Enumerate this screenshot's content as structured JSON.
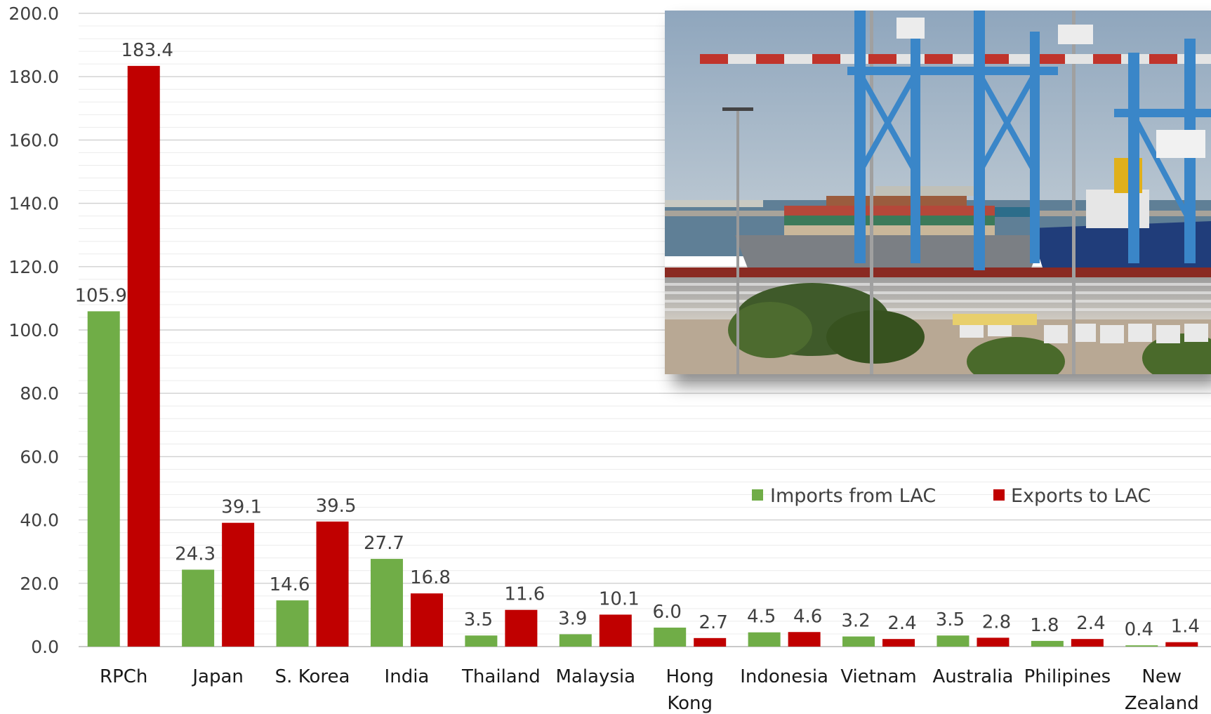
{
  "chart_data": {
    "type": "bar",
    "categories": [
      "RPCh",
      "Japan",
      "S. Korea",
      "India",
      "Thailand",
      "Malaysia",
      "Hong Kong",
      "Indonesia",
      "Vietnam",
      "Australia",
      "Philipines",
      "New Zealand"
    ],
    "category_lines": [
      [
        "RPCh"
      ],
      [
        "Japan"
      ],
      [
        "S. Korea"
      ],
      [
        "India"
      ],
      [
        "Thailand"
      ],
      [
        "Malaysia"
      ],
      [
        "Hong",
        "Kong"
      ],
      [
        "Indonesia"
      ],
      [
        "Vietnam"
      ],
      [
        "Australia"
      ],
      [
        "Philipines"
      ],
      [
        "New",
        "Zealand"
      ]
    ],
    "series": [
      {
        "name": "Imports from LAC",
        "color": "#70ad47",
        "values": [
          105.9,
          24.3,
          14.6,
          27.7,
          3.5,
          3.9,
          6.0,
          4.5,
          3.2,
          3.5,
          1.8,
          0.4
        ],
        "labels": [
          "105.9",
          "24.3",
          "14.6",
          "27.7",
          "3.5",
          "3.9",
          "6.0",
          "4.5",
          "3.2",
          "3.5",
          "1.8",
          "0.4"
        ]
      },
      {
        "name": "Exports to LAC",
        "color": "#c00000",
        "values": [
          183.4,
          39.1,
          39.5,
          16.8,
          11.6,
          10.1,
          2.7,
          4.6,
          2.4,
          2.8,
          2.4,
          1.4
        ],
        "labels": [
          "183.4",
          "39.1",
          "39.5",
          "16.8",
          "11.6",
          "10.1",
          "2.7",
          "4.6",
          "2.4",
          "2.8",
          "2.4",
          "1.4"
        ]
      }
    ],
    "ylim": [
      0,
      200
    ],
    "yticks": [
      "0.0",
      "20.0",
      "40.0",
      "60.0",
      "80.0",
      "100.0",
      "120.0",
      "140.0",
      "160.0",
      "180.0",
      "200.0"
    ],
    "ytick_values": [
      0,
      20,
      40,
      60,
      80,
      100,
      120,
      140,
      160,
      180,
      200
    ],
    "grid": true,
    "legend_position": "lower-right",
    "title": "",
    "xlabel": "",
    "ylabel": ""
  },
  "colors": {
    "gridline": "#d9d9d9",
    "axis": "#bfbfbf"
  },
  "photo": {
    "icon": "container-port-photo-icon"
  }
}
